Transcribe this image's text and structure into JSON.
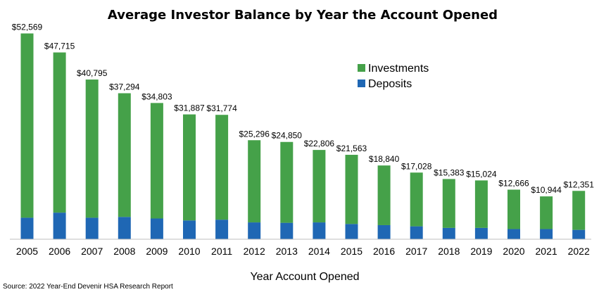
{
  "chart_data": {
    "type": "bar",
    "stacked": true,
    "title": "Average Investor Balance by Year the Account Opened",
    "xlabel": "Year Account Opened",
    "ylabel": "",
    "source": "Source: 2022 Year-End Devenir HSA Research Report",
    "categories": [
      "2005",
      "2006",
      "2007",
      "2008",
      "2009",
      "2010",
      "2011",
      "2012",
      "2013",
      "2014",
      "2015",
      "2016",
      "2017",
      "2018",
      "2019",
      "2020",
      "2021",
      "2022"
    ],
    "totals_labels": [
      "$52,569",
      "$47,715",
      "$40,795",
      "$37,294",
      "$34,803",
      "$31,887",
      "$31,774",
      "$25,296",
      "$24,850",
      "$22,806",
      "$21,563",
      "$18,840",
      "$17,028",
      "$15,383",
      "$15,024",
      "$12,666",
      "$10,944",
      "$12,351"
    ],
    "series": [
      {
        "name": "Deposits",
        "color": "#1f67b4",
        "values": [
          5500,
          6800,
          5500,
          5700,
          5300,
          4800,
          5000,
          4300,
          4200,
          4300,
          3900,
          3600,
          3300,
          2900,
          2900,
          2600,
          2600,
          2400
        ]
      },
      {
        "name": "Investments",
        "color": "#45a149",
        "values": [
          47069,
          40915,
          35295,
          31594,
          29503,
          27087,
          26774,
          20996,
          20650,
          18506,
          17663,
          15240,
          13728,
          12483,
          12124,
          10066,
          8344,
          9951
        ]
      }
    ],
    "ylim": [
      0,
      55000
    ],
    "grid": false,
    "legend": {
      "placement": "top-right",
      "items": [
        {
          "label": "Investments",
          "color": "#45a149"
        },
        {
          "label": "Deposits",
          "color": "#1f67b4"
        }
      ]
    }
  }
}
